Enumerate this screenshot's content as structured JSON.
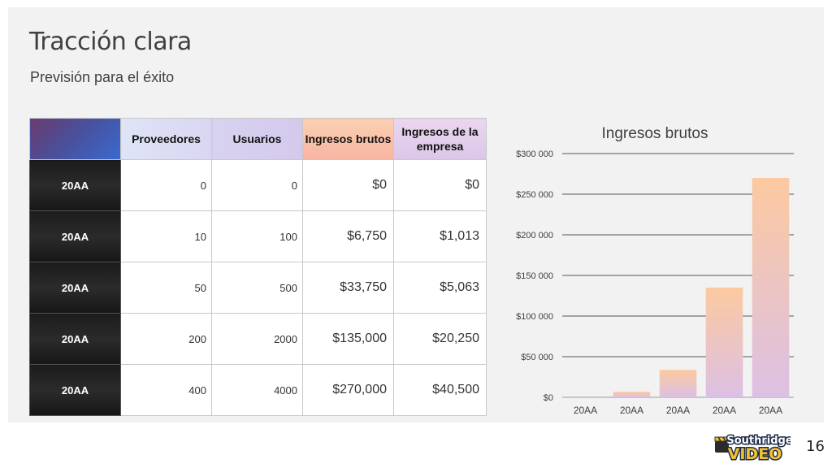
{
  "slide": {
    "title": "Tracción clara",
    "subtitle": "Previsión para el éxito",
    "page_number": "16"
  },
  "table": {
    "headers": [
      "Proveedores",
      "Usuarios",
      "Ingresos brutos",
      "Ingresos de la empresa"
    ],
    "rows": [
      {
        "label": "20AA",
        "providers": "0",
        "users": "0",
        "gross": "$0",
        "company": "$0"
      },
      {
        "label": "20AA",
        "providers": "10",
        "users": "100",
        "gross": "$6,750",
        "company": "$1,013"
      },
      {
        "label": "20AA",
        "providers": "50",
        "users": "500",
        "gross": "$33,750",
        "company": "$5,063"
      },
      {
        "label": "20AA",
        "providers": "200",
        "users": "2000",
        "gross": "$135,000",
        "company": "$20,250"
      },
      {
        "label": "20AA",
        "providers": "400",
        "users": "4000",
        "gross": "$270,000",
        "company": "$40,500"
      }
    ]
  },
  "chart_data": {
    "type": "bar",
    "title": "Ingresos brutos",
    "categories": [
      "20AA",
      "20AA",
      "20AA",
      "20AA",
      "20AA"
    ],
    "values": [
      0,
      6750,
      33750,
      135000,
      270000
    ],
    "ylim": [
      0,
      300000
    ],
    "yticks": [
      0,
      50000,
      100000,
      150000,
      200000,
      250000,
      300000
    ],
    "ytick_labels": [
      "$0",
      "$50 000",
      "$100 000",
      "$150 000",
      "$200 000",
      "$250 000",
      "$300 000"
    ],
    "grid": true,
    "bar_gradient": [
      "#fcc9a0",
      "#dcc0e4"
    ]
  },
  "logo": {
    "text_top": "Southridge",
    "text_bottom": "VIDEO"
  }
}
